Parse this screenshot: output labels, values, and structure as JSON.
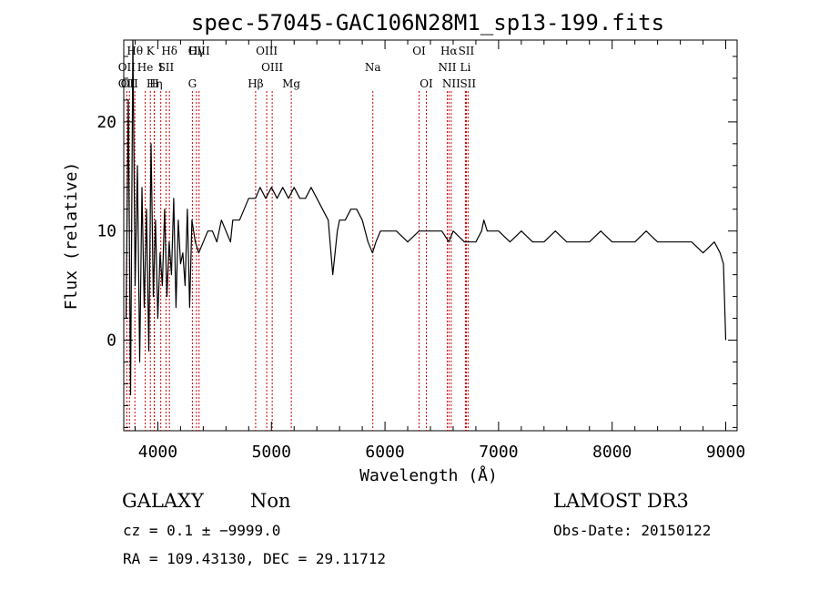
{
  "chart_data": {
    "type": "line",
    "title": "spec-57045-GAC106N28M1_sp13-199.fits",
    "xlabel": "Wavelength (Å)",
    "ylabel": "Flux (relative)",
    "xlim": [
      3700,
      9100
    ],
    "ylim": [
      -8.3,
      27.5
    ],
    "xticks": [
      4000,
      5000,
      6000,
      7000,
      8000,
      9000
    ],
    "yticks": [
      0,
      10,
      20
    ],
    "series": [
      {
        "name": "spectrum",
        "x": [
          3720,
          3740,
          3760,
          3780,
          3800,
          3820,
          3840,
          3860,
          3880,
          3900,
          3920,
          3940,
          3960,
          3980,
          4000,
          4020,
          4040,
          4060,
          4080,
          4100,
          4120,
          4140,
          4160,
          4180,
          4200,
          4220,
          4240,
          4260,
          4280,
          4300,
          4330,
          4360,
          4400,
          4440,
          4480,
          4520,
          4560,
          4600,
          4640,
          4660,
          4680,
          4720,
          4760,
          4800,
          4860,
          4900,
          4950,
          5000,
          5050,
          5100,
          5150,
          5200,
          5250,
          5300,
          5350,
          5400,
          5450,
          5500,
          5540,
          5580,
          5600,
          5650,
          5700,
          5750,
          5800,
          5850,
          5890,
          5920,
          5960,
          6000,
          6100,
          6200,
          6300,
          6400,
          6500,
          6563,
          6600,
          6700,
          6800,
          6850,
          6870,
          6900,
          7000,
          7100,
          7200,
          7300,
          7400,
          7500,
          7600,
          7700,
          7800,
          7900,
          8000,
          8100,
          8200,
          8300,
          8400,
          8500,
          8600,
          8700,
          8800,
          8900,
          8950,
          8980,
          9000
        ],
        "y": [
          2,
          22,
          -5,
          28,
          5,
          16,
          -2,
          14,
          3,
          12,
          -1,
          18,
          4,
          11,
          2,
          8,
          5,
          12,
          4,
          9,
          6,
          13,
          3,
          11,
          7,
          8,
          5,
          12,
          3,
          11,
          9,
          8,
          9,
          10,
          10,
          9,
          11,
          10,
          9,
          11,
          11,
          11,
          12,
          13,
          13,
          14,
          13,
          14,
          13,
          14,
          13,
          14,
          13,
          13,
          14,
          13,
          12,
          11,
          6,
          10,
          11,
          11,
          12,
          12,
          11,
          9,
          8,
          9,
          10,
          10,
          10,
          9,
          10,
          10,
          10,
          9,
          10,
          9,
          9,
          10,
          11,
          10,
          10,
          9,
          10,
          9,
          9,
          10,
          9,
          9,
          9,
          10,
          9,
          9,
          9,
          10,
          9,
          9,
          9,
          9,
          8,
          9,
          8,
          7,
          0
        ]
      }
    ],
    "lines": [
      {
        "wl": 3727,
        "labels": [
          "",
          "OII",
          "OII"
        ]
      },
      {
        "wl": 3750,
        "labels": [
          "",
          "",
          "OII"
        ]
      },
      {
        "wl": 3798,
        "labels": [
          "Hθ",
          "",
          ""
        ]
      },
      {
        "wl": 3889,
        "labels": [
          "",
          "He",
          ""
        ]
      },
      {
        "wl": 3970,
        "labels": [
          "",
          "",
          "Hη"
        ]
      },
      {
        "wl": 4026,
        "labels": [
          "",
          "I",
          ""
        ]
      },
      {
        "wl": 4102,
        "labels": [
          "Hδ",
          "",
          ""
        ]
      },
      {
        "wl": 4340,
        "labels": [
          "Hγ",
          "",
          ""
        ]
      },
      {
        "wl": 3934,
        "labels": [
          "K",
          "",
          ""
        ]
      },
      {
        "wl": 3968,
        "labels": [
          "",
          "",
          "H"
        ]
      },
      {
        "wl": 4072,
        "labels": [
          "",
          "SII",
          ""
        ]
      },
      {
        "wl": 4304,
        "labels": [
          "",
          "",
          "G"
        ]
      },
      {
        "wl": 4363,
        "labels": [
          "OIII",
          "",
          ""
        ]
      },
      {
        "wl": 4861,
        "labels": [
          "",
          "",
          "Hβ"
        ]
      },
      {
        "wl": 4959,
        "labels": [
          "OIII",
          "",
          ""
        ]
      },
      {
        "wl": 5007,
        "labels": [
          "",
          "OIII",
          ""
        ]
      },
      {
        "wl": 5175,
        "labels": [
          "",
          "",
          "Mg"
        ]
      },
      {
        "wl": 5893,
        "labels": [
          "",
          "Na",
          ""
        ]
      },
      {
        "wl": 6300,
        "labels": [
          "OI",
          "",
          ""
        ]
      },
      {
        "wl": 6364,
        "labels": [
          "",
          "",
          "OI"
        ]
      },
      {
        "wl": 6548,
        "labels": [
          "",
          "NII",
          ""
        ]
      },
      {
        "wl": 6563,
        "labels": [
          "Hα",
          "",
          ""
        ]
      },
      {
        "wl": 6583,
        "labels": [
          "",
          "",
          "NII"
        ]
      },
      {
        "wl": 6708,
        "labels": [
          "",
          "Li",
          ""
        ]
      },
      {
        "wl": 6716,
        "labels": [
          "SII",
          "",
          ""
        ]
      },
      {
        "wl": 6731,
        "labels": [
          "",
          "",
          "SII"
        ]
      }
    ]
  },
  "info": {
    "class": "GALAXY",
    "subclass": "Non",
    "cz": "cz = 0.1 ± −9999.0",
    "radec": "RA = 109.43130, DEC =  29.11712",
    "survey": "LAMOST DR3",
    "obsdate": "Obs-Date: 20150122"
  },
  "colors": {
    "axis": "#000000",
    "line": "#000000",
    "marker": "#cc0000"
  }
}
